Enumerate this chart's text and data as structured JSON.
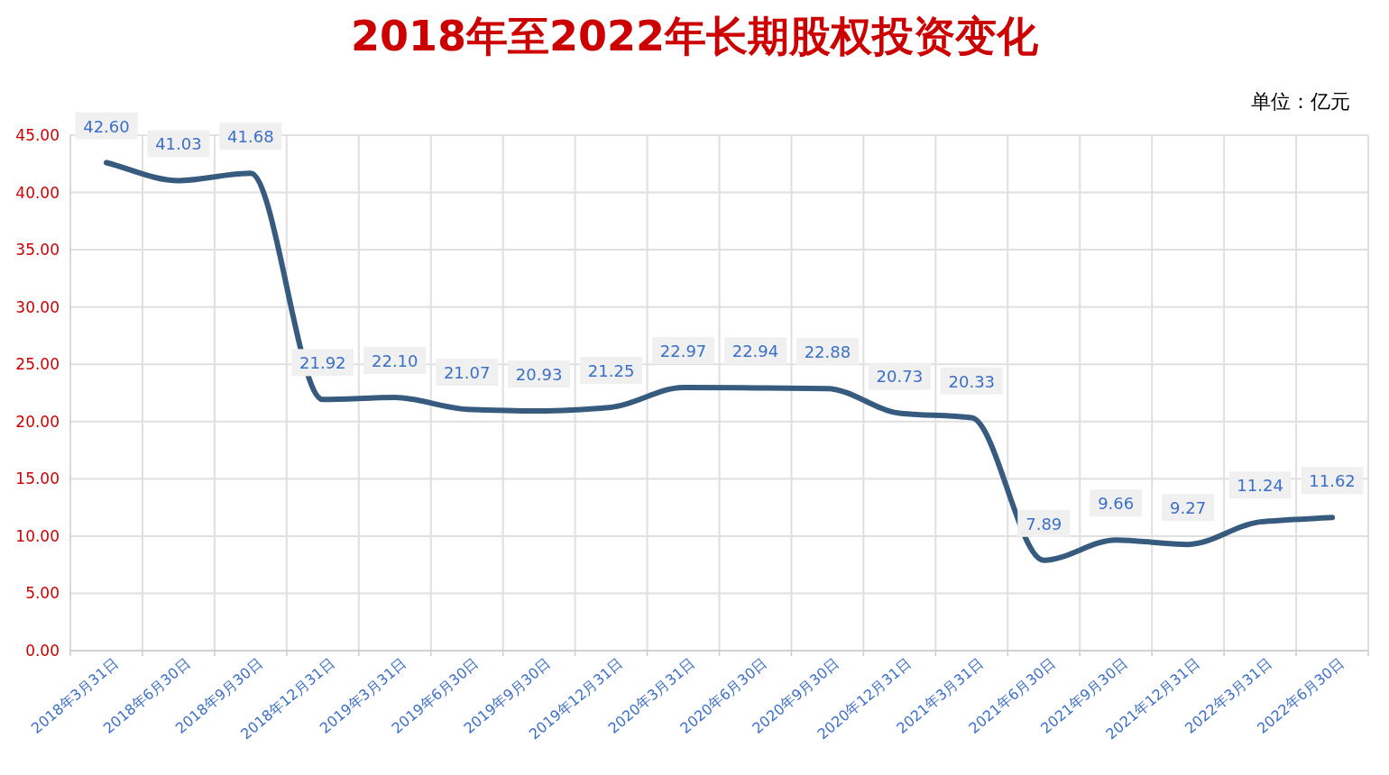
{
  "chart_data": {
    "type": "line",
    "title": "2018年至2022年长期股权投资变化",
    "annotations": [
      "单位：亿元"
    ],
    "categories": [
      "2018年3月31日",
      "2018年6月30日",
      "2018年9月30日",
      "2018年12月31日",
      "2019年3月31日",
      "2019年6月30日",
      "2019年9月30日",
      "2019年12月31日",
      "2020年3月31日",
      "2020年6月30日",
      "2020年9月30日",
      "2020年12月31日",
      "2021年3月31日",
      "2021年6月30日",
      "2021年9月30日",
      "2021年12月31日",
      "2022年3月31日",
      "2022年6月30日"
    ],
    "series": [
      {
        "color": "#365b7e",
        "values": [
          42.6,
          41.03,
          41.68,
          21.92,
          22.1,
          21.07,
          20.93,
          21.25,
          22.97,
          22.94,
          22.88,
          20.73,
          20.33,
          7.89,
          9.66,
          9.27,
          11.24,
          11.62
        ],
        "value_labels": [
          "42.60",
          "41.03",
          "41.68",
          "21.92",
          "22.10",
          "21.07",
          "20.93",
          "21.25",
          "22.97",
          "22.94",
          "22.88",
          "20.73",
          "20.33",
          "7.89",
          "9.66",
          "9.27",
          "11.24",
          "11.62"
        ]
      }
    ],
    "ylim": [
      0,
      45
    ],
    "yticks": [
      {
        "value": 0,
        "label": "0.00"
      },
      {
        "value": 5,
        "label": "5.00"
      },
      {
        "value": 10,
        "label": "10.00"
      },
      {
        "value": 15,
        "label": "15.00"
      },
      {
        "value": 20,
        "label": "20.00"
      },
      {
        "value": 25,
        "label": "25.00"
      },
      {
        "value": 30,
        "label": "30.00"
      },
      {
        "value": 35,
        "label": "35.00"
      },
      {
        "value": 40,
        "label": "40.00"
      },
      {
        "value": 45,
        "label": "45.00"
      }
    ],
    "grid": true,
    "marker": "none",
    "line_style": "solid"
  }
}
